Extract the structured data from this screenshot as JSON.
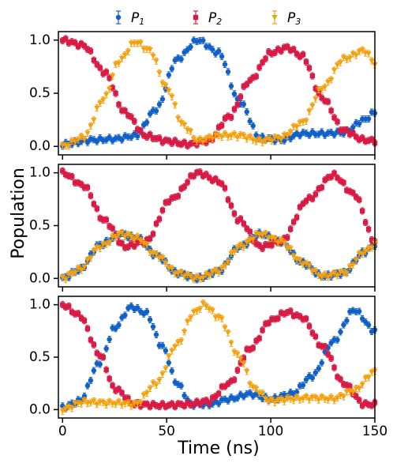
{
  "chart_data": {
    "type": "scatter",
    "xlabel": "Time (ns)",
    "ylabel": "Population",
    "xlim": [
      -2,
      150
    ],
    "ylim": [
      -0.08,
      1.08
    ],
    "x_ticks": [
      0,
      50,
      100,
      150
    ],
    "y_ticks": [
      0.0,
      0.5,
      1.0
    ],
    "legend": {
      "placement": "top-center",
      "entries": [
        {
          "key": "P1",
          "base": "P",
          "sub": "1",
          "color": "#1060c8",
          "marker": "circle"
        },
        {
          "key": "P2",
          "base": "P",
          "sub": "2",
          "color": "#d81b45",
          "marker": "square"
        },
        {
          "key": "P3",
          "base": "P",
          "sub": "3",
          "color": "#f5a00c",
          "marker": "triangle-down"
        }
      ]
    },
    "sampling": {
      "x_start": 0,
      "x_end": 150,
      "x_step": 1.5,
      "error_bar": 0.03
    },
    "panels": [
      {
        "series": [
          {
            "key": "P1",
            "anchors": [
              [
                0,
                0.02
              ],
              [
                15,
                0.06
              ],
              [
                25,
                0.07
              ],
              [
                35,
                0.1
              ],
              [
                45,
                0.35
              ],
              [
                55,
                0.82
              ],
              [
                65,
                1.0
              ],
              [
                75,
                0.88
              ],
              [
                85,
                0.42
              ],
              [
                95,
                0.08
              ],
              [
                105,
                0.06
              ],
              [
                115,
                0.12
              ],
              [
                125,
                0.12
              ],
              [
                135,
                0.13
              ],
              [
                145,
                0.25
              ],
              [
                150,
                0.32
              ]
            ]
          },
          {
            "key": "P2",
            "anchors": [
              [
                0,
                1.0
              ],
              [
                10,
                0.95
              ],
              [
                20,
                0.7
              ],
              [
                30,
                0.32
              ],
              [
                40,
                0.1
              ],
              [
                50,
                0.05
              ],
              [
                60,
                0.02
              ],
              [
                70,
                0.05
              ],
              [
                80,
                0.28
              ],
              [
                90,
                0.62
              ],
              [
                100,
                0.88
              ],
              [
                108,
                0.93
              ],
              [
                115,
                0.85
              ],
              [
                125,
                0.45
              ],
              [
                135,
                0.15
              ],
              [
                145,
                0.06
              ],
              [
                150,
                0.05
              ]
            ]
          },
          {
            "key": "P3",
            "anchors": [
              [
                0,
                0.0
              ],
              [
                10,
                0.08
              ],
              [
                20,
                0.45
              ],
              [
                27,
                0.8
              ],
              [
                35,
                0.98
              ],
              [
                42,
                0.9
              ],
              [
                50,
                0.55
              ],
              [
                58,
                0.2
              ],
              [
                65,
                0.05
              ],
              [
                75,
                0.1
              ],
              [
                85,
                0.1
              ],
              [
                95,
                0.05
              ],
              [
                105,
                0.08
              ],
              [
                115,
                0.22
              ],
              [
                125,
                0.55
              ],
              [
                135,
                0.82
              ],
              [
                145,
                0.9
              ],
              [
                150,
                0.78
              ]
            ]
          }
        ]
      },
      {
        "series": [
          {
            "key": "P1",
            "anchors": [
              [
                0,
                0.0
              ],
              [
                8,
                0.08
              ],
              [
                18,
                0.32
              ],
              [
                28,
                0.42
              ],
              [
                36,
                0.38
              ],
              [
                45,
                0.22
              ],
              [
                55,
                0.05
              ],
              [
                65,
                0.0
              ],
              [
                75,
                0.07
              ],
              [
                85,
                0.3
              ],
              [
                95,
                0.42
              ],
              [
                105,
                0.35
              ],
              [
                115,
                0.15
              ],
              [
                125,
                0.02
              ],
              [
                135,
                0.05
              ],
              [
                145,
                0.25
              ],
              [
                150,
                0.32
              ]
            ]
          },
          {
            "key": "P2",
            "anchors": [
              [
                0,
                1.0
              ],
              [
                10,
                0.88
              ],
              [
                20,
                0.55
              ],
              [
                30,
                0.3
              ],
              [
                40,
                0.35
              ],
              [
                52,
                0.75
              ],
              [
                65,
                1.0
              ],
              [
                75,
                0.92
              ],
              [
                85,
                0.55
              ],
              [
                95,
                0.3
              ],
              [
                105,
                0.35
              ],
              [
                118,
                0.75
              ],
              [
                130,
                0.98
              ],
              [
                140,
                0.8
              ],
              [
                150,
                0.35
              ]
            ]
          },
          {
            "key": "P3",
            "anchors": [
              [
                0,
                0.0
              ],
              [
                8,
                0.08
              ],
              [
                18,
                0.3
              ],
              [
                28,
                0.42
              ],
              [
                36,
                0.38
              ],
              [
                45,
                0.22
              ],
              [
                55,
                0.05
              ],
              [
                65,
                0.0
              ],
              [
                75,
                0.07
              ],
              [
                85,
                0.3
              ],
              [
                95,
                0.42
              ],
              [
                105,
                0.35
              ],
              [
                115,
                0.15
              ],
              [
                125,
                0.02
              ],
              [
                135,
                0.05
              ],
              [
                145,
                0.25
              ],
              [
                150,
                0.32
              ]
            ]
          }
        ]
      },
      {
        "series": [
          {
            "key": "P1",
            "anchors": [
              [
                0,
                0.02
              ],
              [
                8,
                0.08
              ],
              [
                18,
                0.45
              ],
              [
                25,
                0.78
              ],
              [
                33,
                0.98
              ],
              [
                40,
                0.92
              ],
              [
                48,
                0.6
              ],
              [
                55,
                0.25
              ],
              [
                62,
                0.05
              ],
              [
                70,
                0.05
              ],
              [
                80,
                0.1
              ],
              [
                90,
                0.15
              ],
              [
                100,
                0.1
              ],
              [
                110,
                0.15
              ],
              [
                120,
                0.32
              ],
              [
                130,
                0.65
              ],
              [
                140,
                0.95
              ],
              [
                150,
                0.75
              ]
            ]
          },
          {
            "key": "P2",
            "anchors": [
              [
                0,
                1.0
              ],
              [
                8,
                0.9
              ],
              [
                18,
                0.52
              ],
              [
                25,
                0.2
              ],
              [
                35,
                0.05
              ],
              [
                48,
                0.04
              ],
              [
                60,
                0.05
              ],
              [
                70,
                0.08
              ],
              [
                80,
                0.25
              ],
              [
                90,
                0.58
              ],
              [
                100,
                0.85
              ],
              [
                108,
                0.93
              ],
              [
                115,
                0.88
              ],
              [
                125,
                0.6
              ],
              [
                135,
                0.25
              ],
              [
                145,
                0.05
              ],
              [
                150,
                0.05
              ]
            ]
          },
          {
            "key": "P3",
            "anchors": [
              [
                0,
                0.0
              ],
              [
                10,
                0.07
              ],
              [
                25,
                0.06
              ],
              [
                35,
                0.05
              ],
              [
                45,
                0.25
              ],
              [
                55,
                0.62
              ],
              [
                63,
                0.92
              ],
              [
                68,
                1.0
              ],
              [
                75,
                0.88
              ],
              [
                85,
                0.5
              ],
              [
                92,
                0.2
              ],
              [
                100,
                0.08
              ],
              [
                110,
                0.1
              ],
              [
                120,
                0.11
              ],
              [
                130,
                0.1
              ],
              [
                140,
                0.18
              ],
              [
                150,
                0.36
              ]
            ]
          }
        ]
      }
    ]
  }
}
